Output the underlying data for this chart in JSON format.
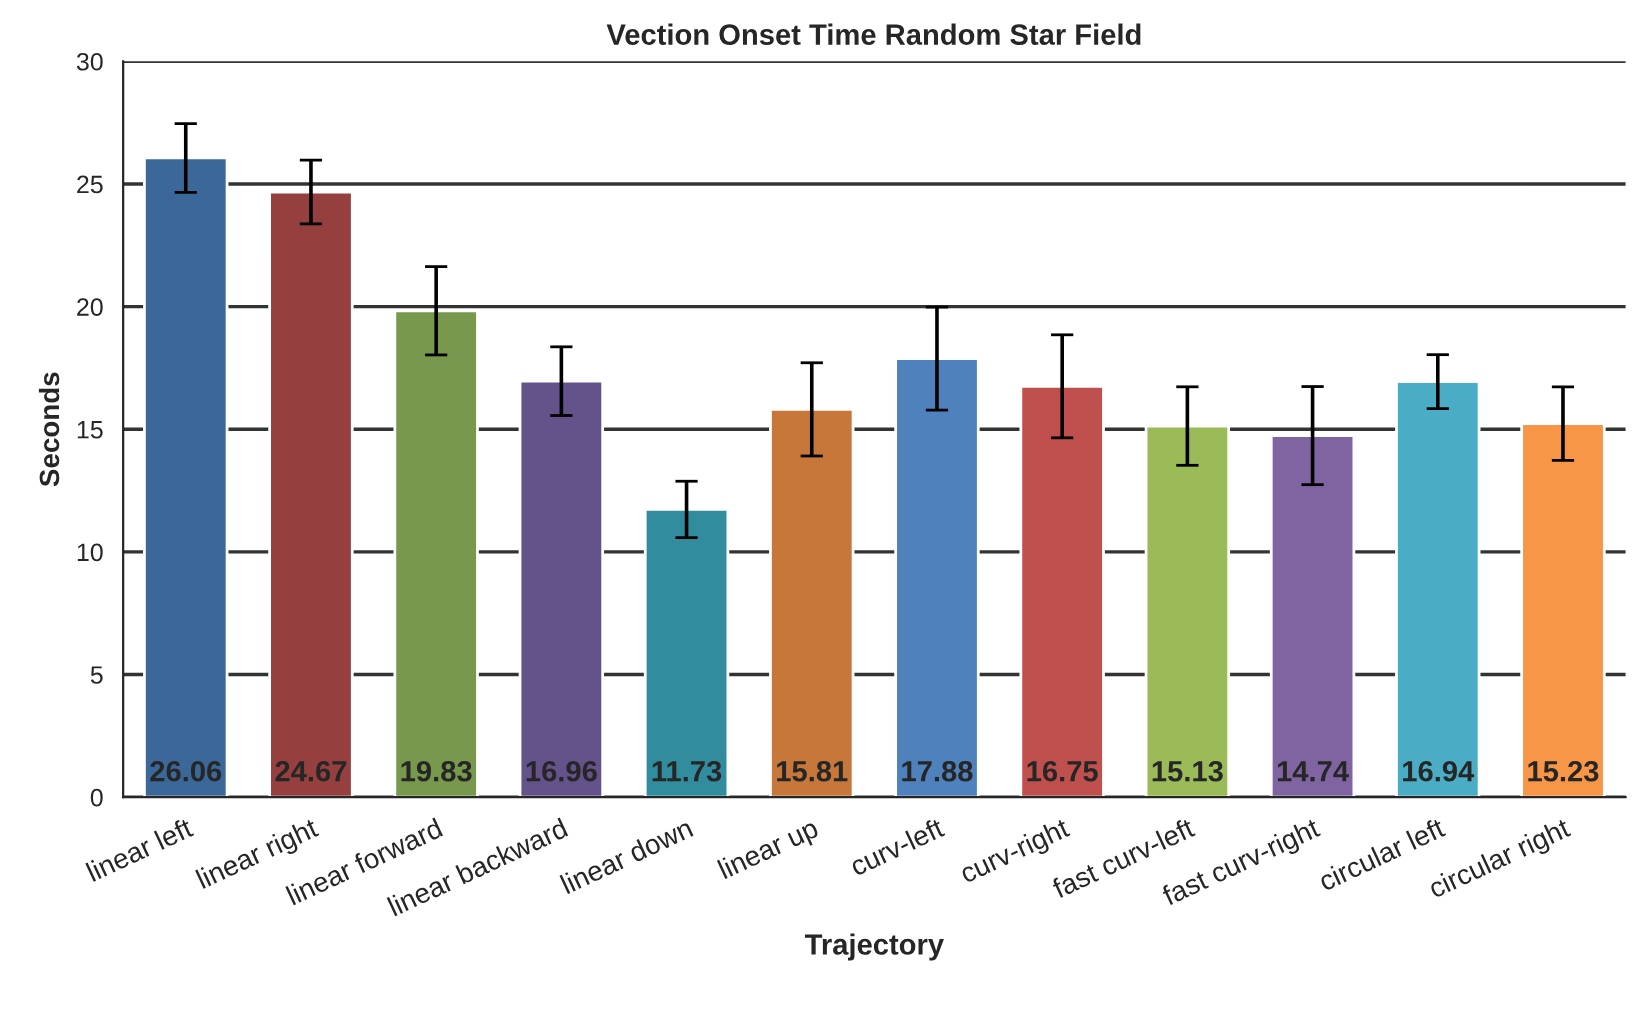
{
  "chart_data": {
    "type": "bar",
    "title": "Vection Onset Time Random Star Field",
    "xlabel": "Trajectory",
    "ylabel": "Seconds",
    "categories": [
      "linear left",
      "linear right",
      "linear forward",
      "linear backward",
      "linear down",
      "linear up",
      "curv-left",
      "curv-right",
      "fast curv-left",
      "fast curv-right",
      "circular left",
      "circular right"
    ],
    "values": [
      26.06,
      24.67,
      19.83,
      16.96,
      11.73,
      15.81,
      17.88,
      16.75,
      15.13,
      14.74,
      16.94,
      15.23
    ],
    "errors": [
      1.4,
      1.3,
      1.8,
      1.4,
      1.15,
      1.9,
      2.1,
      2.1,
      1.6,
      2.0,
      1.1,
      1.5
    ],
    "colors": [
      "#3c6899",
      "#953f3f",
      "#77984d",
      "#64528a",
      "#318c9e",
      "#c8773a",
      "#4f81bd",
      "#c0504d",
      "#9bbb59",
      "#8064a2",
      "#4bacc6",
      "#f79646"
    ],
    "data_labels": true,
    "ylim": [
      0,
      30
    ],
    "yticks": [
      0,
      5,
      10,
      15,
      20,
      25,
      30
    ],
    "grid": "y"
  }
}
